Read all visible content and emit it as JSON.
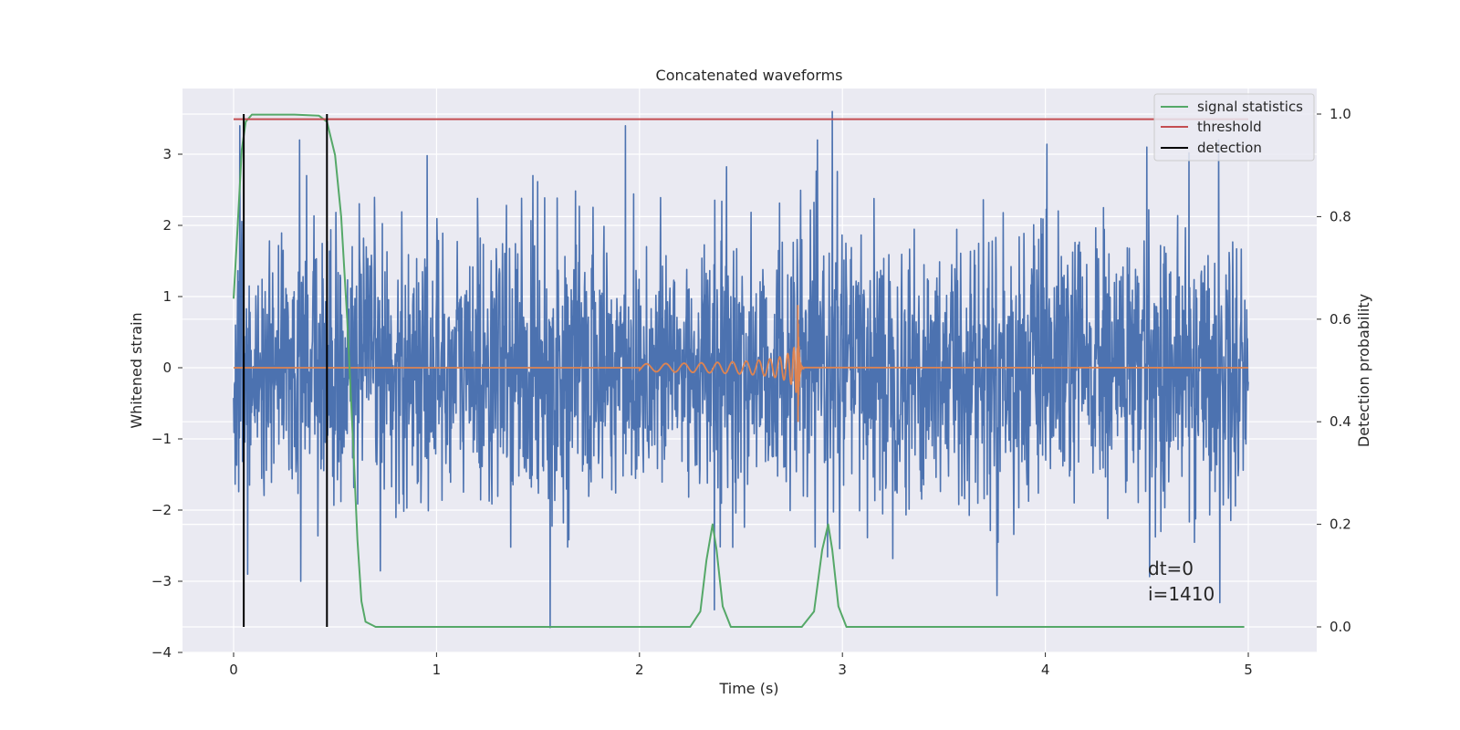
{
  "chart_data": {
    "type": "line",
    "title": "Concatenated waveforms",
    "xlabel": "Time (s)",
    "ylabel": "Whitened strain",
    "y2label": "Detection probability",
    "xlim": [
      -0.25,
      5.35
    ],
    "ylim": [
      -4,
      3.95
    ],
    "y2lim": [
      -0.05,
      1.05
    ],
    "xticks": [
      0,
      1,
      2,
      3,
      4,
      5
    ],
    "yticks": [
      3,
      2,
      1,
      0,
      -1,
      -2,
      -3,
      -4
    ],
    "y2ticks": [
      1.0,
      0.8,
      0.6,
      0.4,
      0.2,
      0.0
    ],
    "xtick_labels": [
      "0",
      "1",
      "2",
      "3",
      "4",
      "5"
    ],
    "ytick_labels": [
      "3",
      "2",
      "1",
      "0",
      "−1",
      "−2",
      "−3",
      "−4"
    ],
    "y2tick_labels": [
      "1.0",
      "0.8",
      "0.6",
      "0.4",
      "0.2",
      "0.0"
    ],
    "grid": true,
    "legend_placement": "top-right",
    "noise": {
      "color": "#4c72b0",
      "t_start": 0,
      "t_end": 5,
      "peaks_pos": [
        [
          0.03,
          3.4
        ],
        [
          0.36,
          2.7
        ],
        [
          1.93,
          3.4
        ],
        [
          2.95,
          3.6
        ],
        [
          4.5,
          3.1
        ]
      ],
      "peaks_neg": [
        [
          0.07,
          -2.9
        ],
        [
          0.33,
          -3.0
        ],
        [
          1.56,
          -3.65
        ],
        [
          2.37,
          -3.4
        ],
        [
          4.86,
          -3.3
        ]
      ]
    },
    "injected_waveform": {
      "color": "#dd8452",
      "t_start": 2.0,
      "t_merger": 2.78,
      "peak_amplitude": 1.0
    },
    "series": [
      {
        "name": "signal statistics",
        "axis": "right",
        "color": "#55a868",
        "points": [
          [
            0.0,
            0.64
          ],
          [
            0.02,
            0.78
          ],
          [
            0.04,
            0.93
          ],
          [
            0.06,
            0.985
          ],
          [
            0.09,
            0.999
          ],
          [
            0.3,
            0.999
          ],
          [
            0.42,
            0.997
          ],
          [
            0.46,
            0.985
          ],
          [
            0.5,
            0.92
          ],
          [
            0.53,
            0.8
          ],
          [
            0.56,
            0.6
          ],
          [
            0.59,
            0.35
          ],
          [
            0.61,
            0.17
          ],
          [
            0.63,
            0.05
          ],
          [
            0.65,
            0.01
          ],
          [
            0.7,
            0.0
          ],
          [
            2.25,
            0.0
          ],
          [
            2.3,
            0.03
          ],
          [
            2.33,
            0.13
          ],
          [
            2.36,
            0.2
          ],
          [
            2.38,
            0.15
          ],
          [
            2.41,
            0.04
          ],
          [
            2.45,
            0.0
          ],
          [
            2.8,
            0.0
          ],
          [
            2.86,
            0.03
          ],
          [
            2.9,
            0.15
          ],
          [
            2.93,
            0.2
          ],
          [
            2.95,
            0.15
          ],
          [
            2.98,
            0.04
          ],
          [
            3.02,
            0.0
          ],
          [
            4.98,
            0.0
          ]
        ]
      },
      {
        "name": "threshold",
        "axis": "right",
        "color": "#c44e52",
        "points": [
          [
            0.0,
            0.99
          ],
          [
            5.0,
            0.99
          ]
        ]
      },
      {
        "name": "detection",
        "axis": "right",
        "color": "#000000",
        "vlines": [
          0.05,
          0.46
        ],
        "ymin": 0.0,
        "ymax": 1.0
      }
    ],
    "annotations": [
      "dt=0",
      "i=1410"
    ]
  }
}
